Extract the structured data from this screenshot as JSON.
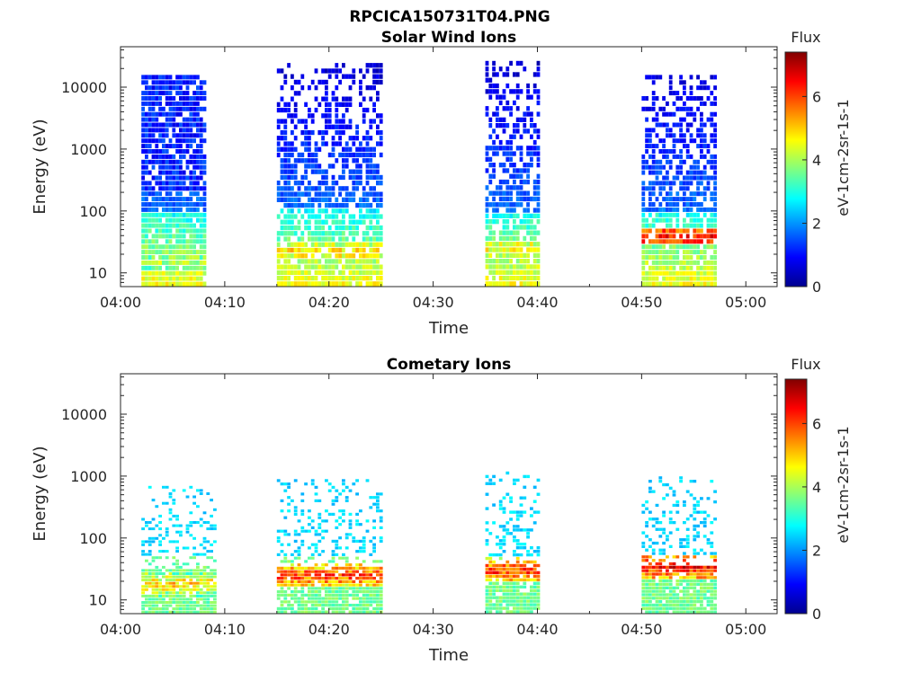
{
  "figure_title": "RPCICA150731T04.PNG",
  "colormap": [
    "#00008f",
    "#0000ff",
    "#0080ff",
    "#00ffff",
    "#80ff80",
    "#ffff00",
    "#ff8000",
    "#ff0000",
    "#800000"
  ],
  "chart_data": [
    {
      "type": "heatmap",
      "title": "Solar Wind Ions",
      "xlabel": "Time",
      "ylabel": "Energy (eV)",
      "x_ticks": [
        "04:00",
        "04:10",
        "04:20",
        "04:30",
        "04:40",
        "04:50",
        "05:00"
      ],
      "x_range": [
        "04:00",
        "05:03"
      ],
      "y_scale": "log",
      "y_ticks": [
        "10",
        "100",
        "1000",
        "10000"
      ],
      "y_range": [
        6,
        45000
      ],
      "colorbar": {
        "label": "Flux",
        "unit": "eV-1cm-2sr-1s-1",
        "ticks": [
          "0",
          "2",
          "4",
          "6"
        ],
        "range": [
          0,
          7.4
        ]
      },
      "bursts": [
        {
          "start": "04:02",
          "end": "04:08",
          "max_energy": 16000,
          "peak_flux": 4.7,
          "peak_energy": 15
        },
        {
          "start": "04:15",
          "end": "04:25",
          "max_energy": 25000,
          "peak_flux": 5.5,
          "peak_energy": 22
        },
        {
          "start": "04:35",
          "end": "04:40",
          "max_energy": 27000,
          "peak_flux": 5.3,
          "peak_energy": 25
        },
        {
          "start": "04:50",
          "end": "04:57",
          "max_energy": 16000,
          "peak_flux": 7.0,
          "peak_energy": 38
        }
      ]
    },
    {
      "type": "heatmap",
      "title": "Cometary Ions",
      "xlabel": "Time",
      "ylabel": "Energy (eV)",
      "x_ticks": [
        "04:00",
        "04:10",
        "04:20",
        "04:30",
        "04:40",
        "04:50",
        "05:00"
      ],
      "x_range": [
        "04:00",
        "05:03"
      ],
      "y_scale": "log",
      "y_ticks": [
        "10",
        "100",
        "1000",
        "10000"
      ],
      "y_range": [
        6,
        45000
      ],
      "colorbar": {
        "label": "Flux",
        "unit": "eV-1cm-2sr-1s-1",
        "ticks": [
          "0",
          "2",
          "4",
          "6"
        ],
        "range": [
          0,
          7.4
        ]
      },
      "bursts": [
        {
          "start": "04:02",
          "end": "04:09",
          "max_energy": 700,
          "peak_flux": 5.8,
          "peak_energy": 18
        },
        {
          "start": "04:15",
          "end": "04:25",
          "max_energy": 900,
          "peak_flux": 6.8,
          "peak_energy": 25
        },
        {
          "start": "04:35",
          "end": "04:40",
          "max_energy": 1200,
          "peak_flux": 6.9,
          "peak_energy": 30
        },
        {
          "start": "04:50",
          "end": "04:57",
          "max_energy": 1000,
          "peak_flux": 7.3,
          "peak_energy": 35
        }
      ]
    }
  ]
}
